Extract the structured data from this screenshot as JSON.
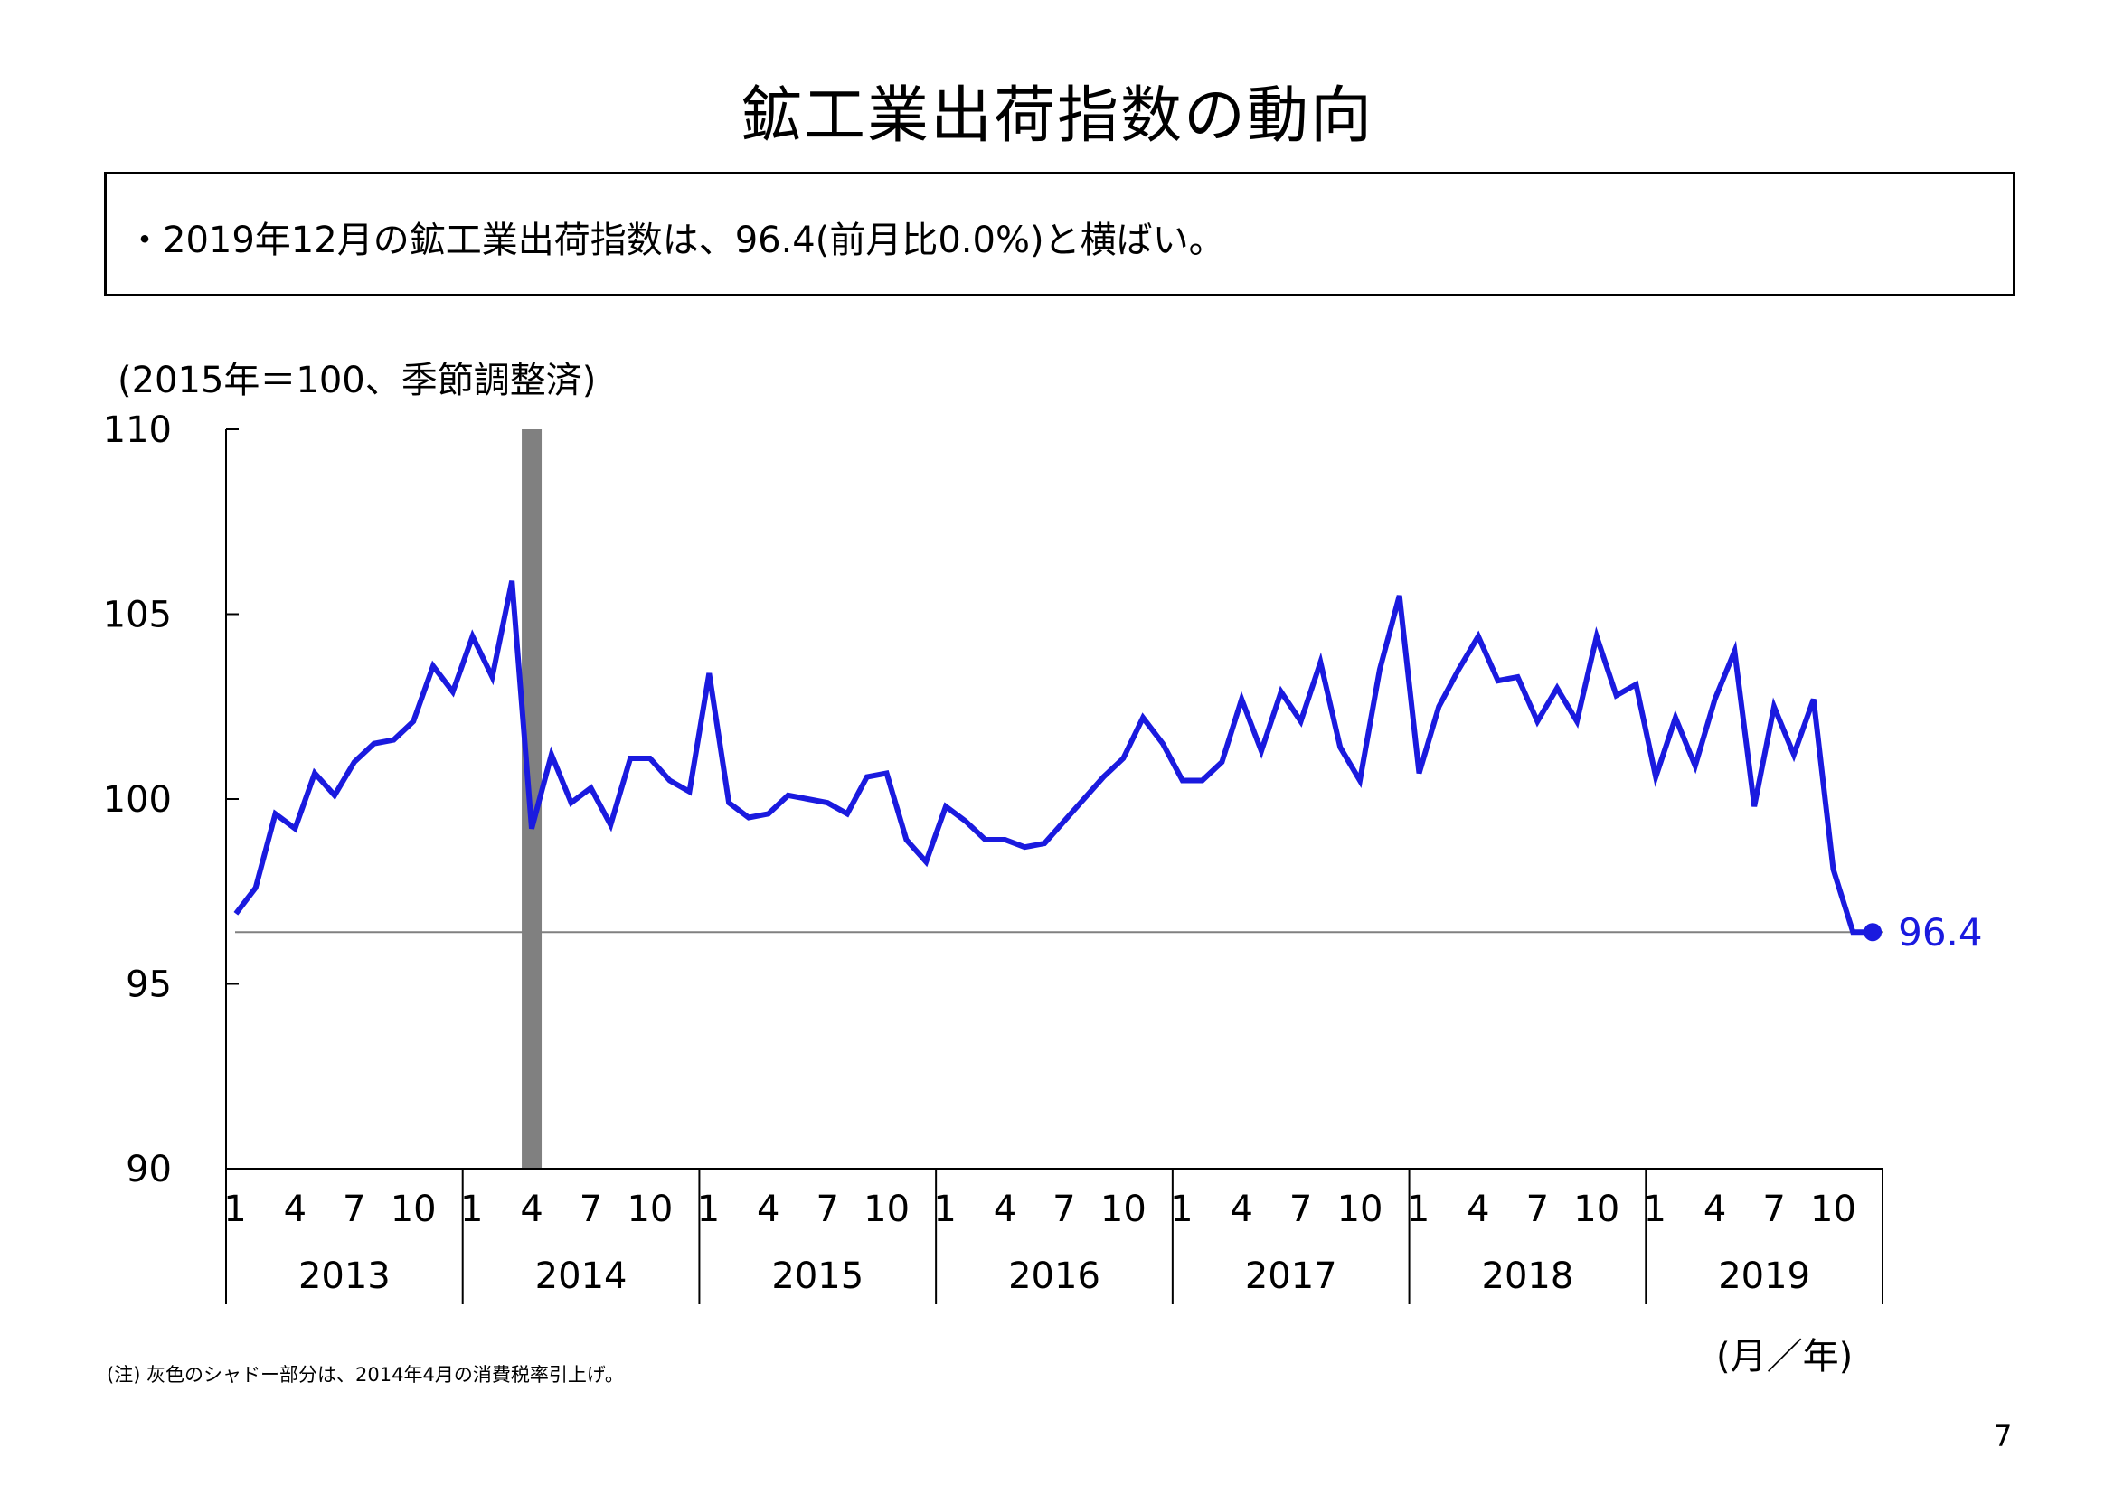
{
  "title": "鉱工業出荷指数の動向",
  "summary": "・2019年12月の鉱工業出荷指数は、96.4(前月比0.0%)と横ばい。",
  "unit_note": "(2015年＝100、季節調整済)",
  "footnote": "(注) 灰色のシャドー部分は、2014年4月の消費税率引上げ。",
  "axis_unit_label": "(月／年)",
  "page_number": "7",
  "latest_value_label": "96.4",
  "colors": {
    "line": "#1a1adf",
    "shade": "#808080",
    "reference_line": "#808080",
    "axis": "#000000"
  },
  "chart_data": {
    "type": "line",
    "y_ticks": [
      "110",
      "105",
      "100",
      "95",
      "90"
    ],
    "ylim": [
      90,
      110
    ],
    "month_ticks": [
      "1",
      "4",
      "7",
      "10"
    ],
    "years": [
      "2013",
      "2014",
      "2015",
      "2016",
      "2017",
      "2018",
      "2019"
    ],
    "shaded_period": "2014-04",
    "reference_value": 96.4,
    "series": [
      {
        "start": "2013-01",
        "values": [
          96.9,
          97.6,
          99.6,
          99.2,
          100.7,
          100.1,
          101.0,
          101.5,
          101.6,
          102.1,
          103.6,
          102.9,
          104.4,
          103.3,
          105.9,
          99.2,
          101.2,
          99.9,
          100.3,
          99.3,
          101.1,
          101.1,
          100.5,
          100.2,
          103.4,
          99.9,
          99.5,
          99.6,
          100.1,
          100.0,
          99.9,
          99.6,
          100.6,
          100.7,
          98.9,
          98.3,
          99.8,
          99.4,
          98.9,
          98.9,
          98.7,
          98.8,
          99.4,
          100.0,
          100.6,
          101.1,
          102.2,
          101.5,
          100.5,
          100.5,
          101.0,
          102.7,
          101.3,
          102.9,
          102.1,
          103.7,
          101.4,
          100.5,
          103.5,
          105.5,
          100.7,
          102.5,
          103.5,
          104.4,
          103.2,
          103.3,
          102.1,
          103.0,
          102.1,
          104.4,
          102.8,
          103.1,
          100.6,
          102.2,
          100.9,
          102.7,
          104.0,
          99.8,
          102.5,
          101.2,
          102.7,
          98.1,
          96.4,
          96.4
        ]
      }
    ]
  }
}
